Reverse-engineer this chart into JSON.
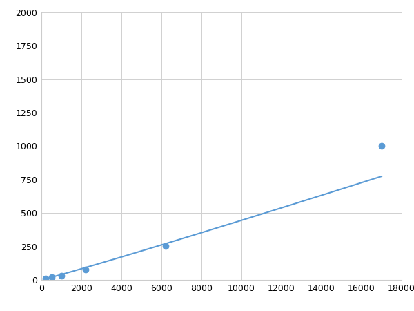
{
  "x": [
    200,
    500,
    1000,
    2200,
    6200,
    17000
  ],
  "y": [
    10,
    20,
    30,
    75,
    255,
    1005
  ],
  "line_color": "#5b9bd5",
  "marker_color": "#5b9bd5",
  "marker_size": 6,
  "marker_style": "o",
  "line_width": 1.5,
  "xlim": [
    0,
    18000
  ],
  "ylim": [
    0,
    2000
  ],
  "xticks": [
    0,
    2000,
    4000,
    6000,
    8000,
    10000,
    12000,
    14000,
    16000,
    18000
  ],
  "yticks": [
    0,
    250,
    500,
    750,
    1000,
    1250,
    1500,
    1750,
    2000
  ],
  "grid_color": "#d0d0d0",
  "grid_linestyle": "-",
  "grid_linewidth": 0.7,
  "background_color": "#ffffff",
  "tick_fontsize": 9,
  "spine_color": "#cccccc",
  "fig_width": 6.0,
  "fig_height": 4.5,
  "dpi": 100
}
